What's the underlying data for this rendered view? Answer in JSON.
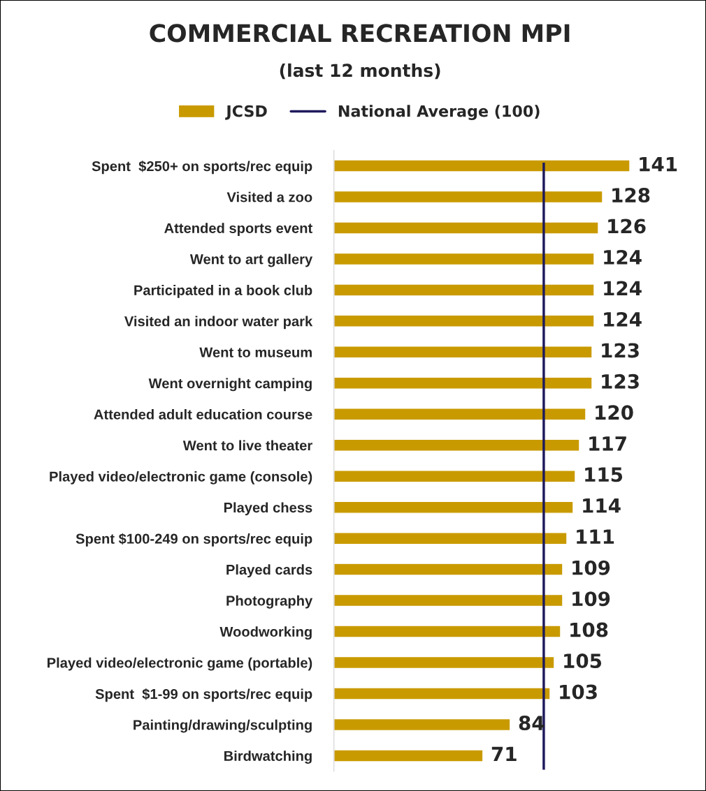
{
  "chart_data": {
    "type": "bar",
    "orientation": "horizontal",
    "title": "COMMERCIAL RECREATION MPI",
    "subtitle": "(last 12 months)",
    "categories": [
      "Spent  $250+ on sports/rec equip",
      "Visited a zoo",
      "Attended sports event",
      "Went to art gallery",
      "Participated in a book club",
      "Visited an indoor water park",
      "Went to museum",
      "Went overnight camping",
      "Attended adult education course",
      "Went to live theater",
      "Played video/electronic game (console)",
      "Played chess",
      "Spent $100-249 on sports/rec equip",
      "Played cards",
      "Photography",
      "Woodworking",
      "Played video/electronic game (portable)",
      "Spent  $1-99 on sports/rec equip",
      "Painting/drawing/sculpting",
      "Birdwatching"
    ],
    "series": [
      {
        "name": "JCSD",
        "color": "#c99a00",
        "values": [
          141,
          128,
          126,
          124,
          124,
          124,
          123,
          123,
          120,
          117,
          115,
          114,
          111,
          109,
          109,
          108,
          105,
          103,
          84,
          71
        ]
      }
    ],
    "ref_lines": [
      {
        "axis": "x",
        "value": 100,
        "label": "National Average (100)",
        "color": "#1f1a5c",
        "line_style": "solid"
      }
    ],
    "data_labels": true,
    "legend": "top",
    "grid": false,
    "tick_labels": "y"
  }
}
